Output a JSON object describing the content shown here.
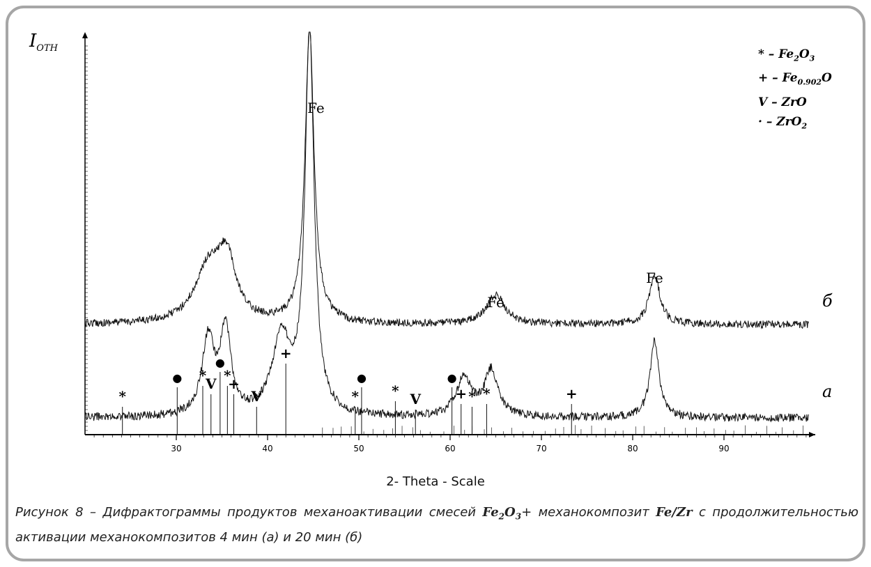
{
  "chart_data": {
    "type": "line",
    "ylabel": {
      "main": "I",
      "sub": "OTH"
    },
    "xlabel": "2- Theta - Scale",
    "xlim": [
      20,
      100
    ],
    "xticks": [
      30,
      40,
      50,
      60,
      70,
      80,
      90
    ],
    "series": [
      {
        "name": "б",
        "peaks": [
          {
            "x": 33.5,
            "h": 0.18,
            "w": 1.8
          },
          {
            "x": 35.5,
            "h": 0.2,
            "w": 1.2
          },
          {
            "x": 44.6,
            "h": 1.0,
            "w": 0.6
          },
          {
            "x": 65.0,
            "h": 0.1,
            "w": 1.2
          },
          {
            "x": 82.4,
            "h": 0.17,
            "w": 0.7
          }
        ]
      },
      {
        "name": "а",
        "peaks": [
          {
            "x": 33.5,
            "h": 0.2,
            "w": 0.8
          },
          {
            "x": 35.4,
            "h": 0.22,
            "w": 0.7
          },
          {
            "x": 41.5,
            "h": 0.2,
            "w": 1.2
          },
          {
            "x": 44.6,
            "h": 1.0,
            "w": 0.6
          },
          {
            "x": 61.5,
            "h": 0.1,
            "w": 1.0
          },
          {
            "x": 64.5,
            "h": 0.12,
            "w": 0.9
          },
          {
            "x": 82.4,
            "h": 0.2,
            "w": 0.6
          }
        ]
      }
    ],
    "peak_labels": [
      {
        "text": "Fe",
        "x": 45.3,
        "series": "б"
      },
      {
        "text": "Fe",
        "x": 65.0,
        "series": "б"
      },
      {
        "text": "Fe",
        "x": 82.4,
        "series": "б"
      }
    ],
    "phase_markers": [
      {
        "symbol": "*",
        "x": 24.1
      },
      {
        "symbol": "●",
        "x": 30.1
      },
      {
        "symbol": "*",
        "x": 32.9
      },
      {
        "symbol": "V",
        "x": 33.8
      },
      {
        "symbol": "●",
        "x": 34.8
      },
      {
        "symbol": "*",
        "x": 35.6
      },
      {
        "symbol": "+",
        "x": 36.3
      },
      {
        "symbol": "V",
        "x": 38.8
      },
      {
        "symbol": "+",
        "x": 42.0
      },
      {
        "symbol": "*",
        "x": 49.6
      },
      {
        "symbol": "●",
        "x": 50.3
      },
      {
        "symbol": "*",
        "x": 54.0
      },
      {
        "symbol": "V",
        "x": 56.2
      },
      {
        "symbol": "●",
        "x": 60.2
      },
      {
        "symbol": "+",
        "x": 61.2
      },
      {
        "symbol": "*",
        "x": 62.4
      },
      {
        "symbol": "*",
        "x": 64.0
      },
      {
        "symbol": "+",
        "x": 73.3
      }
    ],
    "legend": [
      {
        "symbol": "*",
        "formula": "Fe2O3"
      },
      {
        "symbol": "+",
        "formula": "Fe0.902O"
      },
      {
        "symbol": "V",
        "formula": "ZrO"
      },
      {
        "symbol": "·",
        "formula": "ZrO2"
      }
    ],
    "legend_text": {
      "l1_sym": "* –",
      "l1_a": "Fe",
      "l1_sub1": "2",
      "l1_b": "O",
      "l1_sub2": "3",
      "l2_sym": "+ –",
      "l2_a": "Fe",
      "l2_sub1": "0.902",
      "l2_b": "O",
      "l3_sym": "V –",
      "l3_a": "ZrO",
      "l4_sym": "· –",
      "l4_a": "ZrO",
      "l4_sub1": "2"
    },
    "legend_position": "top-right",
    "grid": false
  },
  "caption": {
    "p1": "Рисунок 8 – Дифрактограммы продуктов механоактивации смесей ",
    "f1a": "Fe",
    "f1sub": "2",
    "f1b": "O",
    "f1sub2": "3",
    "p2": "+ механокомпозит ",
    "f2": "Fe/Zr",
    "p3": " с продолжительностью активации механокомпозитов 4 мин (а) и 20 мин (б)"
  }
}
